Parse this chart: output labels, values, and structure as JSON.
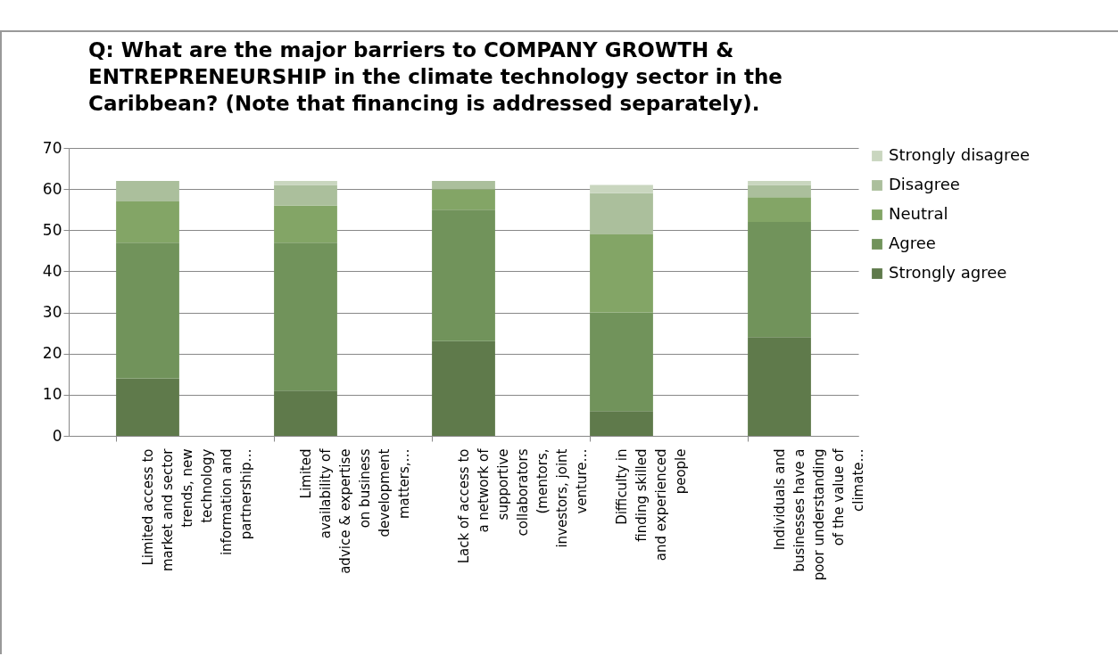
{
  "chart_data": {
    "type": "bar",
    "stacked": true,
    "title": "Q: What are the major barriers to COMPANY GROWTH & ENTREPRENEURSHIP in the climate technology sector in the Caribbean? (Note that financing is addressed separately).",
    "categories": [
      "Limited access to market and sector trends, new technology information and partnership…",
      "Limited availability of advice & expertise on business development matters,…",
      "Lack of access to a network of supportive collaborators (mentors, investors, joint venture…",
      "Difficulty in finding skilled and experienced people",
      "Individuals and businesses have a poor understanding of the value of climate…"
    ],
    "series": [
      {
        "name": "Strongly agree",
        "color": "#5f7a4b",
        "values": [
          14,
          11,
          23,
          6,
          24
        ]
      },
      {
        "name": "Agree",
        "color": "#71935b",
        "values": [
          33,
          36,
          32,
          24,
          28
        ]
      },
      {
        "name": "Neutral",
        "color": "#83a566",
        "values": [
          10,
          9,
          5,
          19,
          6
        ]
      },
      {
        "name": "Disagree",
        "color": "#abbf9c",
        "values": [
          5,
          5,
          2,
          10,
          3
        ]
      },
      {
        "name": "Strongly disagree",
        "color": "#c9d6bf",
        "values": [
          0,
          1,
          0,
          2,
          1
        ]
      }
    ],
    "ylim": [
      0,
      70
    ],
    "yticks": [
      0,
      10,
      20,
      30,
      40,
      50,
      60,
      70
    ],
    "grid": "y",
    "legend": "right"
  }
}
